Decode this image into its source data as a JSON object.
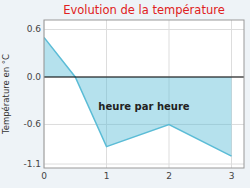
{
  "chart_data": {
    "type": "area",
    "title": "Evolution de la température",
    "y_label": "Température en °C",
    "annotations": [
      {
        "text": "heure par heure",
        "x": 1.6,
        "y": -0.38
      }
    ],
    "x": [
      0,
      0.5,
      1.0,
      2.0,
      3.0
    ],
    "values": [
      0.5,
      0.0,
      -0.88,
      -0.6,
      -1.0
    ],
    "color": "#5bbcd6",
    "xlim": [
      0,
      3.2
    ],
    "ylim": [
      -1.15,
      0.72
    ],
    "xticks": [
      0,
      1,
      2,
      3
    ],
    "yticks": [
      -1.1,
      -0.6,
      {
        "value": 0.0,
        "label": "0.0"
      },
      0.6
    ],
    "grid": true
  }
}
